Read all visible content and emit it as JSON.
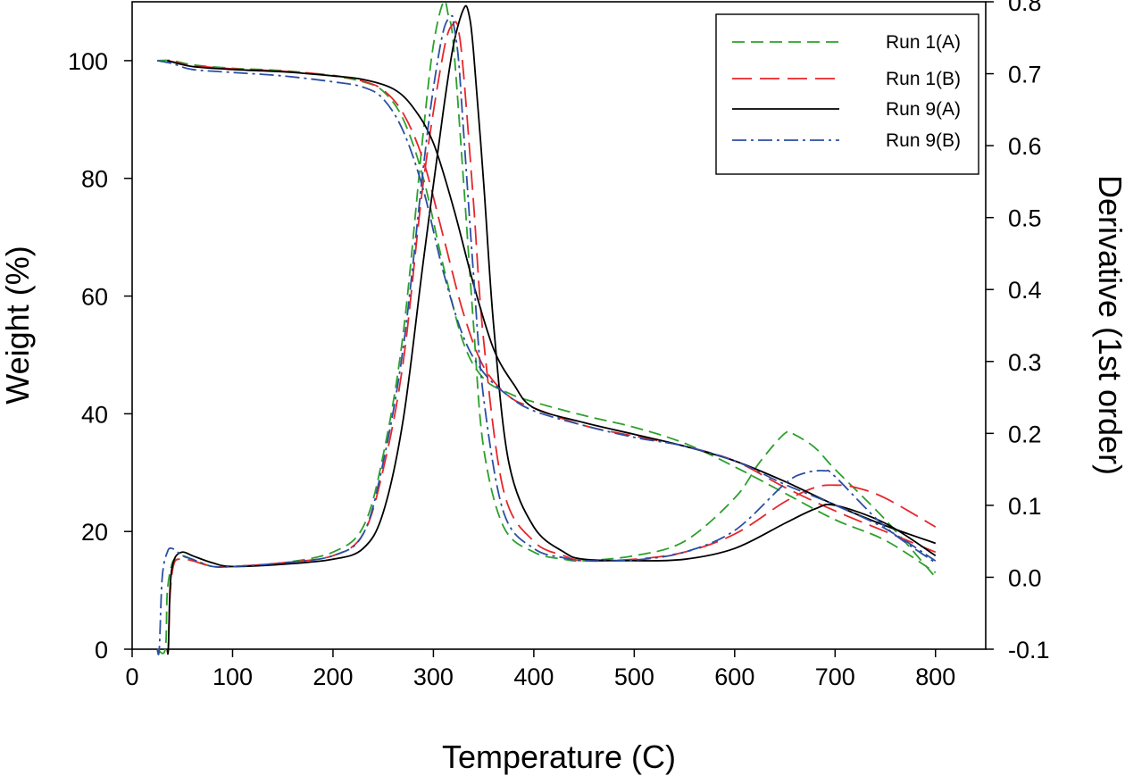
{
  "chart_data": {
    "type": "line",
    "title": "",
    "xlabel": "Temperature (C)",
    "ylabel": "Weight (%)",
    "y2label": "Derivative (1st order)",
    "xlim": [
      0,
      850
    ],
    "ylim": [
      0,
      110
    ],
    "y2lim": [
      -0.1,
      0.8
    ],
    "x_ticks": [
      0,
      100,
      200,
      300,
      400,
      500,
      600,
      700,
      800
    ],
    "y_ticks": [
      0,
      20,
      40,
      60,
      80,
      100
    ],
    "y2_ticks": [
      -0.1,
      0.0,
      0.1,
      0.2,
      0.3,
      0.4,
      0.5,
      0.6,
      0.7,
      0.8
    ],
    "y2_tick_labels": [
      "-0.1",
      "0.0",
      "0.1",
      "0.2",
      "0.3",
      "0.4",
      "0.5",
      "0.6",
      "0.7",
      "0.8"
    ],
    "legend": {
      "position": "top-right",
      "entries": [
        "Run 1(A)",
        "Run 1(B)",
        "Run 9(A)",
        "Run 9(B)"
      ]
    },
    "series": [
      {
        "name": "Run 1(A)",
        "color": "#2ca02c",
        "dash": "dashed",
        "weight": {
          "x": [
            25,
            40,
            60,
            100,
            150,
            200,
            230,
            250,
            270,
            290,
            310,
            330,
            350,
            375,
            400,
            450,
            500,
            550,
            600,
            650,
            700,
            750,
            800
          ],
          "y": [
            100,
            100,
            99.3,
            98.7,
            98.3,
            97.4,
            96.4,
            94.8,
            90,
            80,
            65,
            52,
            46,
            43.5,
            42,
            39.7,
            37.7,
            35,
            31,
            26.5,
            22,
            18.5,
            13
          ]
        },
        "derivative": {
          "x": [
            25,
            33,
            35,
            40,
            45,
            50,
            60,
            80,
            100,
            150,
            200,
            230,
            250,
            270,
            290,
            300,
            310,
            315,
            320,
            330,
            340,
            350,
            370,
            400,
            430,
            450,
            500,
            550,
            600,
            625,
            650,
            660,
            680,
            700,
            750,
            800
          ],
          "y": [
            -0.1,
            -0.1,
            -0.02,
            0.02,
            0.025,
            0.03,
            0.025,
            0.015,
            0.015,
            0.02,
            0.035,
            0.07,
            0.17,
            0.34,
            0.62,
            0.74,
            0.8,
            0.78,
            0.74,
            0.55,
            0.35,
            0.18,
            0.07,
            0.035,
            0.025,
            0.023,
            0.03,
            0.05,
            0.11,
            0.16,
            0.2,
            0.198,
            0.18,
            0.15,
            0.08,
            0.0
          ]
        }
      },
      {
        "name": "Run 1(B)",
        "color": "#e8262a",
        "dash": "long-dashed",
        "weight": {
          "x": [
            35,
            60,
            100,
            150,
            200,
            230,
            250,
            270,
            290,
            310,
            330,
            350,
            375,
            400,
            450,
            500,
            550,
            600,
            650,
            700,
            750,
            800
          ],
          "y": [
            100,
            99.2,
            98.6,
            98.2,
            97.5,
            96.5,
            95,
            91,
            83,
            70,
            57,
            48,
            43,
            41,
            38,
            36.2,
            34.5,
            32,
            27.5,
            23.5,
            20,
            16.5
          ]
        },
        "derivative": {
          "x": [
            35,
            36,
            38,
            42,
            50,
            60,
            80,
            100,
            150,
            200,
            230,
            250,
            270,
            290,
            310,
            320,
            325,
            330,
            340,
            350,
            370,
            400,
            430,
            450,
            500,
            550,
            600,
            650,
            680,
            700,
            720,
            750,
            800
          ],
          "y": [
            -0.1,
            -0.1,
            -0.02,
            0.02,
            0.025,
            0.023,
            0.015,
            0.015,
            0.02,
            0.03,
            0.06,
            0.15,
            0.3,
            0.55,
            0.73,
            0.77,
            0.76,
            0.7,
            0.52,
            0.33,
            0.12,
            0.05,
            0.03,
            0.023,
            0.025,
            0.035,
            0.06,
            0.105,
            0.125,
            0.128,
            0.125,
            0.11,
            0.07
          ]
        }
      },
      {
        "name": "Run 9(A)",
        "color": "#000000",
        "dash": "solid",
        "weight": {
          "x": [
            35,
            60,
            100,
            150,
            200,
            230,
            260,
            280,
            300,
            320,
            340,
            360,
            380,
            400,
            450,
            500,
            550,
            600,
            650,
            700,
            750,
            800
          ],
          "y": [
            100,
            99,
            98.5,
            98.1,
            97.4,
            96.8,
            95.2,
            92,
            86,
            75,
            62,
            51,
            45,
            41,
            38.5,
            36.5,
            34.5,
            32,
            28.5,
            24.5,
            21,
            18
          ]
        },
        "derivative": {
          "x": [
            35,
            36,
            38,
            42,
            50,
            60,
            80,
            100,
            150,
            200,
            230,
            250,
            270,
            290,
            310,
            320,
            330,
            335,
            340,
            350,
            360,
            375,
            400,
            430,
            450,
            500,
            550,
            600,
            650,
            680,
            700,
            750,
            800
          ],
          "y": [
            -0.1,
            -0.1,
            -0.01,
            0.025,
            0.035,
            0.03,
            0.02,
            0.015,
            0.018,
            0.025,
            0.04,
            0.09,
            0.22,
            0.44,
            0.65,
            0.74,
            0.79,
            0.785,
            0.73,
            0.55,
            0.35,
            0.16,
            0.07,
            0.035,
            0.025,
            0.023,
            0.025,
            0.04,
            0.075,
            0.095,
            0.1,
            0.075,
            0.03
          ]
        }
      },
      {
        "name": "Run 9(B)",
        "color": "#2b4fa3",
        "dash": "dash-dot",
        "weight": {
          "x": [
            25,
            40,
            60,
            100,
            150,
            200,
            230,
            250,
            270,
            290,
            310,
            330,
            350,
            375,
            400,
            450,
            500,
            550,
            600,
            650,
            700,
            750,
            800
          ],
          "y": [
            100,
            99.5,
            98.5,
            98,
            97.4,
            96.4,
            95.5,
            93.5,
            88,
            78,
            64,
            53,
            47,
            43,
            40.5,
            38,
            36,
            34.5,
            32,
            28,
            24.5,
            20.5,
            15
          ]
        },
        "derivative": {
          "x": [
            25,
            27,
            30,
            35,
            40,
            50,
            60,
            80,
            100,
            150,
            200,
            230,
            250,
            270,
            290,
            300,
            310,
            318,
            320,
            325,
            330,
            340,
            350,
            370,
            400,
            430,
            450,
            500,
            550,
            600,
            650,
            670,
            690,
            700,
            750,
            800
          ],
          "y": [
            -0.1,
            -0.1,
            0.0,
            0.035,
            0.04,
            0.03,
            0.025,
            0.015,
            0.015,
            0.02,
            0.03,
            0.06,
            0.16,
            0.32,
            0.57,
            0.68,
            0.76,
            0.78,
            0.77,
            0.72,
            0.62,
            0.42,
            0.25,
            0.09,
            0.04,
            0.027,
            0.023,
            0.024,
            0.035,
            0.065,
            0.13,
            0.145,
            0.148,
            0.14,
            0.07,
            0.02
          ]
        }
      }
    ]
  }
}
